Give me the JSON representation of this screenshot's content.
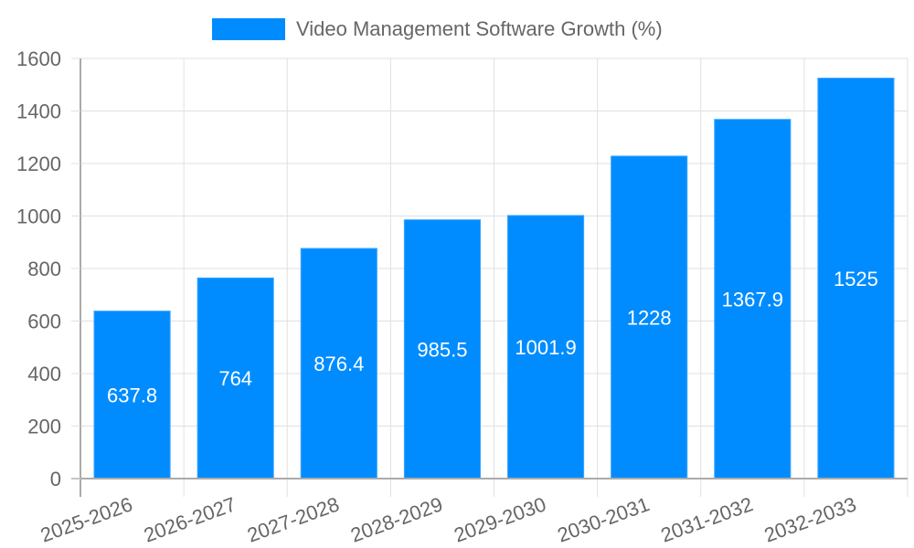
{
  "chart_data": {
    "type": "bar",
    "title": "",
    "legend": [
      {
        "label": "Video Management Software Growth (%)",
        "color": "#008cff"
      }
    ],
    "legend_position": "top",
    "categories": [
      "2025-2026",
      "2026-2027",
      "2027-2028",
      "2028-2029",
      "2029-2030",
      "2030-2031",
      "2031-2032",
      "2032-2033"
    ],
    "series": [
      {
        "name": "Video Management Software Growth (%)",
        "values": [
          637.8,
          764,
          876.4,
          985.5,
          1001.9,
          1228,
          1367.9,
          1525
        ],
        "color": "#008cff"
      }
    ],
    "value_labels": [
      "637.8",
      "764",
      "876.4",
      "985.5",
      "1001.9",
      "1228",
      "1367.9",
      "1525"
    ],
    "xlabel": "",
    "ylabel": "",
    "ylim": [
      0,
      1600
    ],
    "yticks": [
      0,
      200,
      400,
      600,
      800,
      1000,
      1200,
      1400,
      1600
    ],
    "grid": true,
    "x_tick_rotation": -20
  },
  "legend": {
    "label": "Video Management Software Growth (%)"
  }
}
